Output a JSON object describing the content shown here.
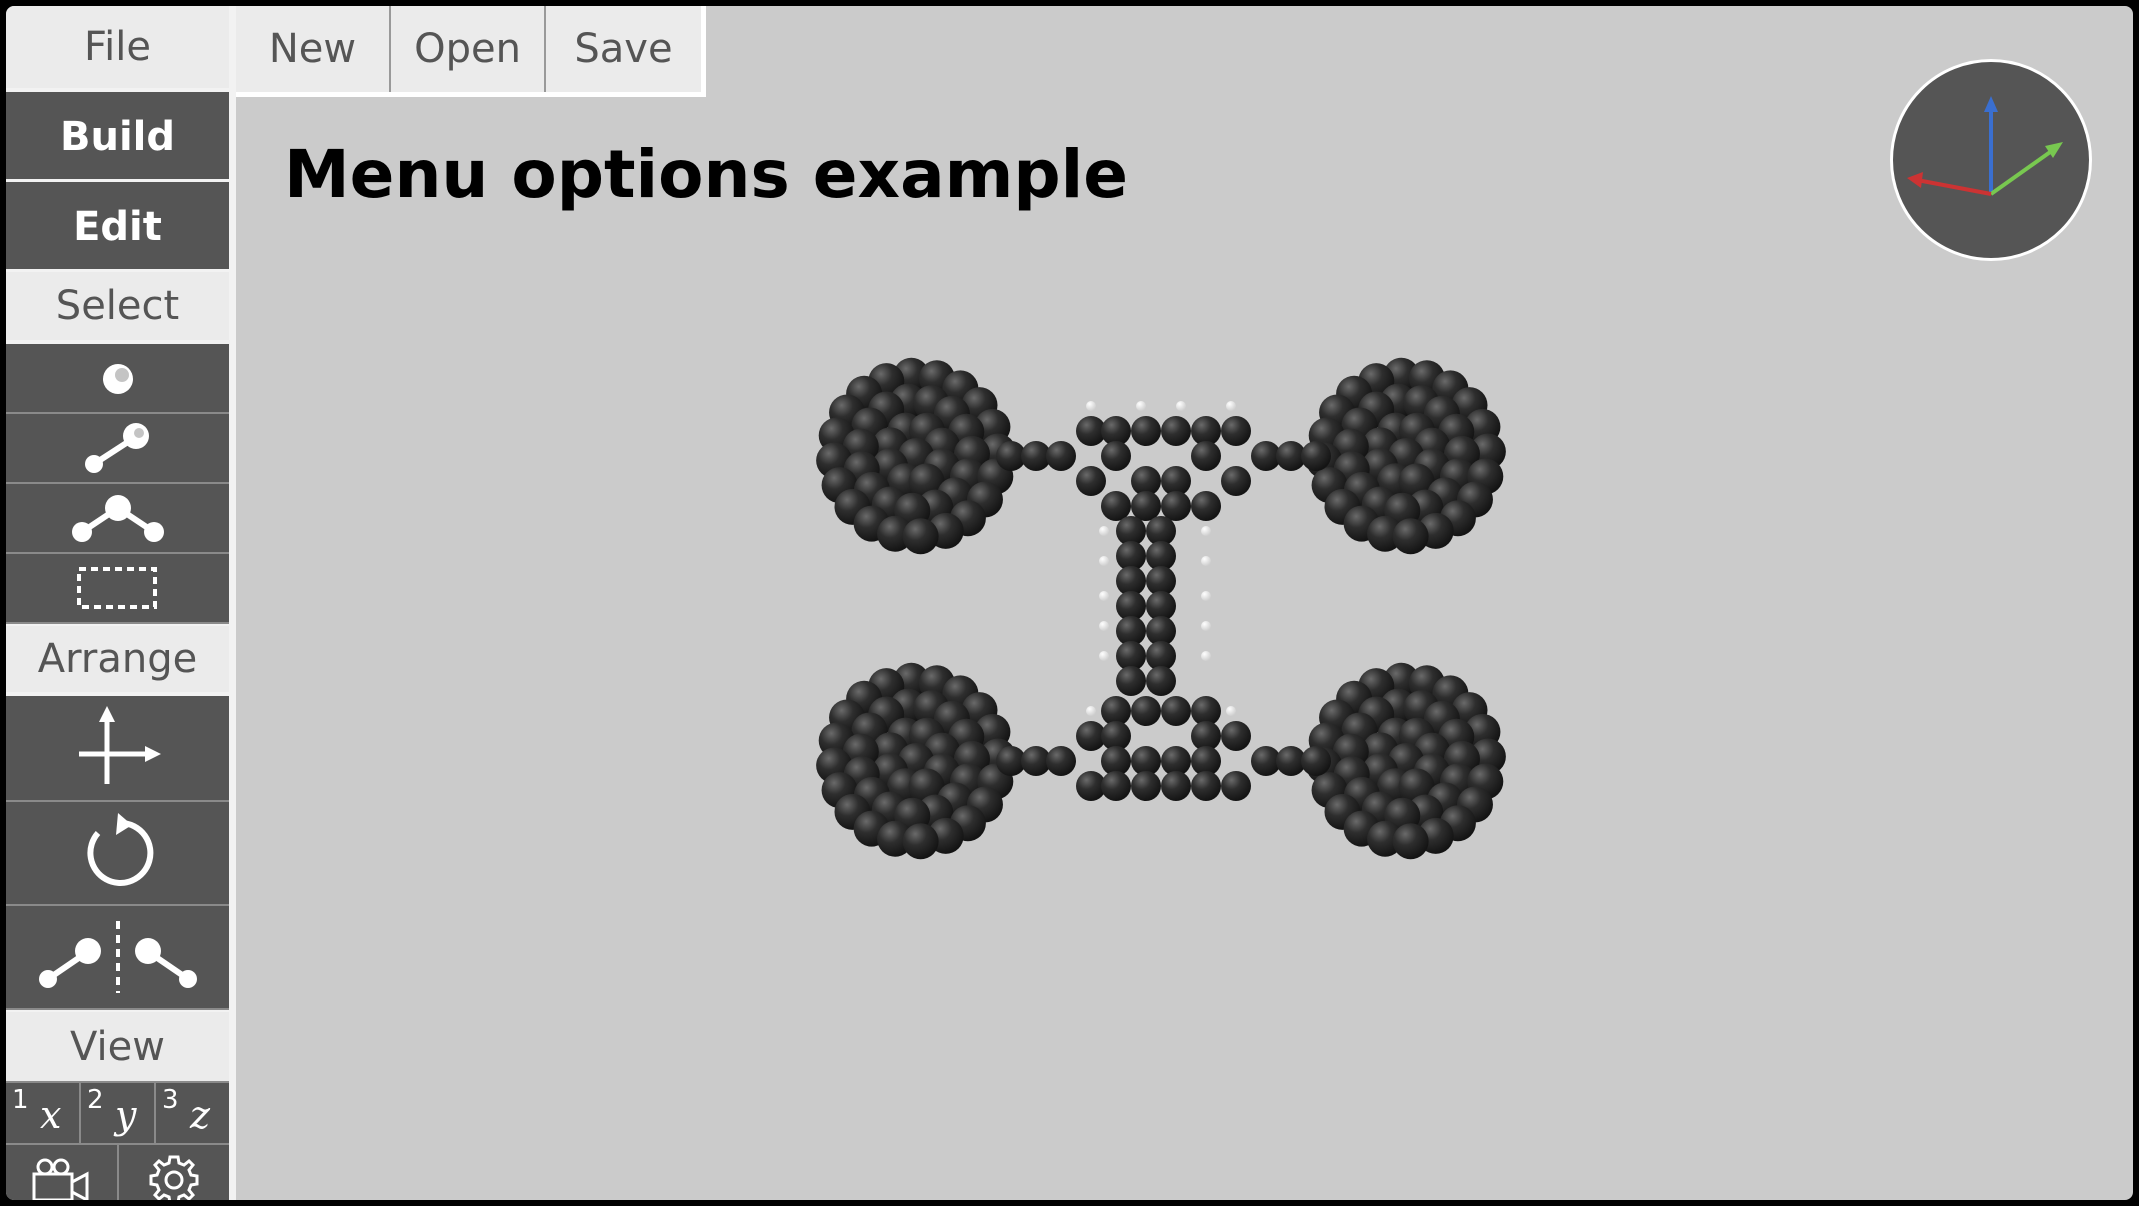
{
  "menu": {
    "file": "File",
    "build": "Build",
    "edit": "Edit",
    "select": "Select",
    "arrange": "Arrange",
    "view": "View"
  },
  "file_menu": {
    "new": "New",
    "open": "Open",
    "save": "Save"
  },
  "view_axes": [
    {
      "key": "1",
      "axis": "x"
    },
    {
      "key": "2",
      "axis": "y"
    },
    {
      "key": "3",
      "axis": "z"
    }
  ],
  "canvas": {
    "title": "Menu options example"
  },
  "icons": {
    "select_atom": "atom-select-icon",
    "select_bond": "bond-select-icon",
    "select_angle": "angle-select-icon",
    "select_box": "box-select-icon",
    "translate": "move-arrows-icon",
    "rotate": "rotate-icon",
    "mirror": "mirror-icon",
    "camera": "camera-icon",
    "settings": "gear-icon"
  },
  "colors": {
    "sidebar_dark": "#555555",
    "category_light": "#ebebeb",
    "background": "#cbcbcb",
    "axis_x": "#cc3333",
    "axis_y": "#66cc55",
    "axis_z": "#3366cc"
  }
}
